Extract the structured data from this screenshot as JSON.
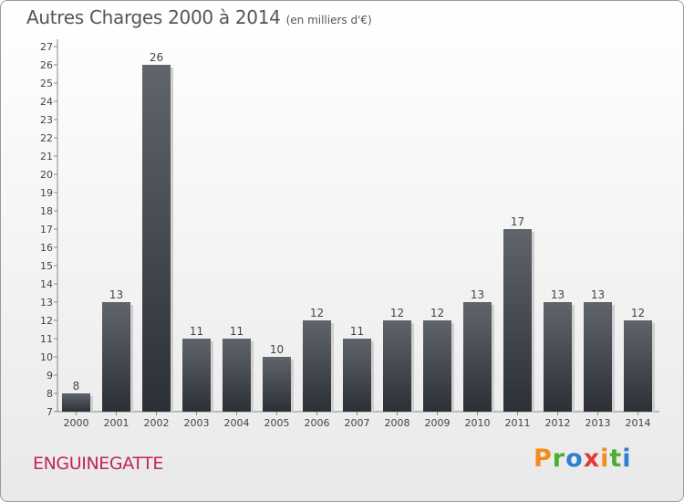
{
  "header": {
    "title": "Autres Charges 2000 à 2014",
    "subtitle": "(en milliers d'€)"
  },
  "footer": {
    "commune": "ENGUINEGATTE",
    "logo_letters": [
      "P",
      "r",
      "o",
      "x",
      "i",
      "t",
      "i"
    ],
    "logo_colors": [
      "#f28c1f",
      "#4caf2f",
      "#2f7fd1",
      "#e53935",
      "#f28c1f",
      "#4caf2f",
      "#2f7fd1"
    ]
  },
  "colors": {
    "bar_top": "#5f656b",
    "bar_bottom": "#2b3036",
    "commune": "#c2255c"
  },
  "chart_data": {
    "type": "bar",
    "categories": [
      "2000",
      "2001",
      "2002",
      "2003",
      "2004",
      "2005",
      "2006",
      "2007",
      "2008",
      "2009",
      "2010",
      "2011",
      "2012",
      "2013",
      "2014"
    ],
    "values": [
      8,
      13,
      26,
      11,
      11,
      10,
      12,
      11,
      12,
      12,
      13,
      17,
      13,
      13,
      12
    ],
    "title": "Autres Charges 2000 à 2014",
    "subtitle": "(en milliers d'€)",
    "xlabel": "",
    "ylabel": "",
    "ylim": [
      7,
      27
    ],
    "yticks": [
      7,
      8,
      9,
      10,
      11,
      12,
      13,
      14,
      15,
      16,
      17,
      18,
      19,
      20,
      21,
      22,
      23,
      24,
      25,
      26,
      27
    ],
    "grid": false,
    "data_labels": true
  }
}
